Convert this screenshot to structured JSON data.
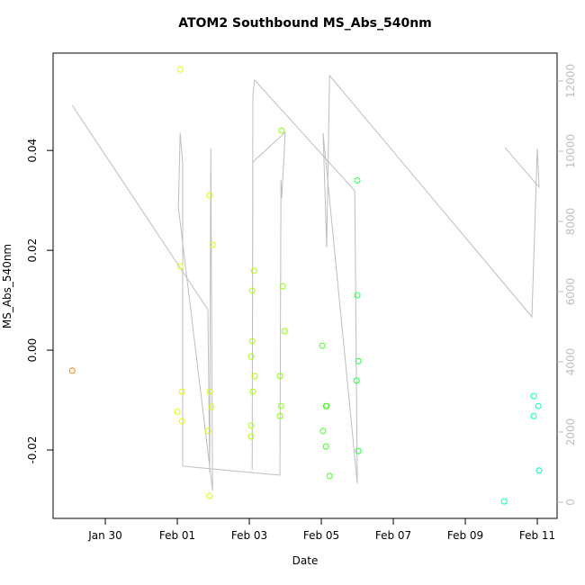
{
  "chart_data": {
    "type": "scatter",
    "title": "ATOM2 Southbound MS_Abs_540nm",
    "x_label": "Date",
    "y_label": "MS_Abs_540nm",
    "x": [
      29.08,
      32.08,
      32.08,
      32.13,
      32.0,
      32.13,
      32.9,
      32.98,
      32.9,
      32.95,
      32.85,
      32.9,
      34.13,
      34.08,
      34.08,
      34.05,
      34.15,
      34.1,
      34.05,
      34.05,
      34.9,
      34.93,
      34.98,
      34.85,
      34.88,
      34.85,
      36.03,
      36.13,
      36.15,
      36.05,
      36.13,
      36.23,
      37.0,
      37.0,
      37.03,
      36.98,
      37.03,
      41.08,
      41.9,
      42.03,
      41.9,
      42.05
    ],
    "values": [
      -0.0041,
      0.0562,
      0.0168,
      -0.0083,
      -0.0123,
      -0.0142,
      0.031,
      0.0211,
      -0.0083,
      -0.0114,
      -0.0162,
      -0.0292,
      0.0159,
      0.0119,
      0.0018,
      -0.0013,
      -0.0052,
      -0.0083,
      -0.0151,
      -0.0173,
      0.044,
      0.0128,
      0.0038,
      -0.0052,
      -0.0112,
      -0.0132,
      0.0009,
      -0.0112,
      -0.0112,
      -0.0162,
      -0.0193,
      -0.0252,
      0.034,
      0.011,
      -0.0022,
      -0.0061,
      -0.0202,
      -0.0303,
      -0.0092,
      -0.0112,
      -0.0132,
      -0.0241
    ],
    "colors": [
      "#ff7f00",
      "#e6ff00",
      "#e6ff00",
      "#e6ff00",
      "#e6ff00",
      "#e6ff00",
      "#d9ff00",
      "#d9ff00",
      "#d9ff00",
      "#d9ff00",
      "#d9ff00",
      "#d9ff00",
      "#aaff00",
      "#aaff00",
      "#aaff00",
      "#aaff00",
      "#aaff00",
      "#aaff00",
      "#aaff00",
      "#aaff00",
      "#80ff00",
      "#80ff00",
      "#80ff00",
      "#80ff00",
      "#80ff00",
      "#80ff00",
      "#40ff20",
      "#40ff20",
      "#40ff20",
      "#40ff20",
      "#40ff20",
      "#40ff20",
      "#20ff40",
      "#20ff40",
      "#20ff40",
      "#20ff40",
      "#20ff40",
      "#00ffb0",
      "#00ffc0",
      "#00ffc0",
      "#00ffc0",
      "#00ffc0"
    ],
    "line": {
      "axis": "y2",
      "color": "#bebebe",
      "x": [
        29.08,
        32.85,
        32.9,
        32.93,
        32.98,
        32.03,
        32.08,
        32.15,
        32.15,
        34.85,
        34.88,
        34.9,
        35.0,
        34.1,
        34.08,
        34.1,
        34.15,
        36.93,
        37.0,
        36.05,
        36.15,
        36.23,
        41.85,
        42.0,
        42.05,
        41.1
      ],
      "values": [
        11308,
        5487,
        846,
        10077,
        333,
        8397,
        10526,
        9628,
        1026,
        769,
        9179,
        8667,
        10538,
        9692,
        923,
        11615,
        12026,
        8872,
        538,
        10513,
        7256,
        12154,
        5282,
        10077,
        8974,
        10103
      ]
    },
    "xlim": [
      28.55,
      42.55
    ],
    "xticks": [
      {
        "value": 30,
        "label": "Jan 30"
      },
      {
        "value": 32,
        "label": "Feb 01"
      },
      {
        "value": 34,
        "label": "Feb 03"
      },
      {
        "value": 36,
        "label": "Feb 05"
      },
      {
        "value": 38,
        "label": "Feb 07"
      },
      {
        "value": 40,
        "label": "Feb 09"
      },
      {
        "value": 42,
        "label": "Feb 11"
      }
    ],
    "ylim": [
      -0.0337,
      0.0595
    ],
    "yticks": [
      -0.02,
      {
        "value": 0,
        "label": "0.00"
      },
      0.02,
      0.04
    ],
    "y2lim": [
      -462,
      12795
    ],
    "y2ticks": [
      0,
      2000,
      4000,
      6000,
      8000,
      10000,
      12000
    ],
    "y2_color": "#bebebe"
  }
}
